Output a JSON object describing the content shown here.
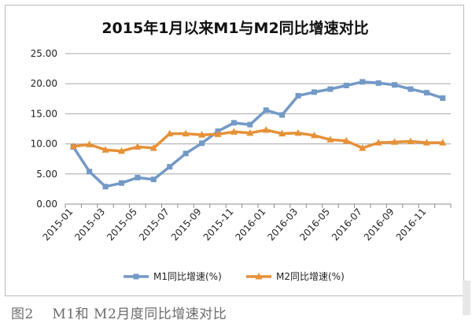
{
  "caption": "图2    M1和 M2月度同比增速对比",
  "chart_data": {
    "type": "line",
    "title": "2015年1月以来M1与M2同比增速对比",
    "ylim": [
      0,
      25
    ],
    "yticks": [
      "25.00",
      "20.00",
      "15.00",
      "10.00",
      "5.00",
      "0.00"
    ],
    "ytick_values": [
      25,
      20,
      15,
      10,
      5,
      0
    ],
    "grid": true,
    "legend_position": "bottom",
    "categories": [
      "2015-01",
      "2015-02",
      "2015-03",
      "2015-04",
      "2015-05",
      "2015-06",
      "2015-07",
      "2015-08",
      "2015-09",
      "2015-10",
      "2015-11",
      "2015-12",
      "2016-01",
      "2016-02",
      "2016-03",
      "2016-04",
      "2016-05",
      "2016-06",
      "2016-07",
      "2016-08",
      "2016-09",
      "2016-10",
      "2016-11",
      "2016-12"
    ],
    "xtick_labels": [
      "2015-01",
      "2015-03",
      "2015-05",
      "2015-07",
      "2015-09",
      "2015-11",
      "2016-01",
      "2016-03",
      "2016-05",
      "2016-07",
      "2016-09",
      "2016-11"
    ],
    "series": [
      {
        "name": "M1同比增速(%)",
        "color": "#7399c6",
        "marker": "square",
        "values": [
          9.5,
          5.4,
          2.9,
          3.5,
          4.4,
          4.1,
          6.2,
          8.4,
          10.1,
          12.1,
          13.5,
          13.2,
          15.6,
          14.8,
          18.0,
          18.6,
          19.1,
          19.7,
          20.3,
          20.1,
          19.8,
          19.1,
          18.5,
          17.6
        ]
      },
      {
        "name": "M2同比增速(%)",
        "color": "#e69138",
        "marker": "triangle",
        "values": [
          9.6,
          9.9,
          9.0,
          8.8,
          9.5,
          9.3,
          11.7,
          11.7,
          11.5,
          11.6,
          12.0,
          11.8,
          12.3,
          11.7,
          11.8,
          11.4,
          10.7,
          10.5,
          9.3,
          10.2,
          10.3,
          10.4,
          10.2,
          10.2
        ]
      }
    ]
  }
}
